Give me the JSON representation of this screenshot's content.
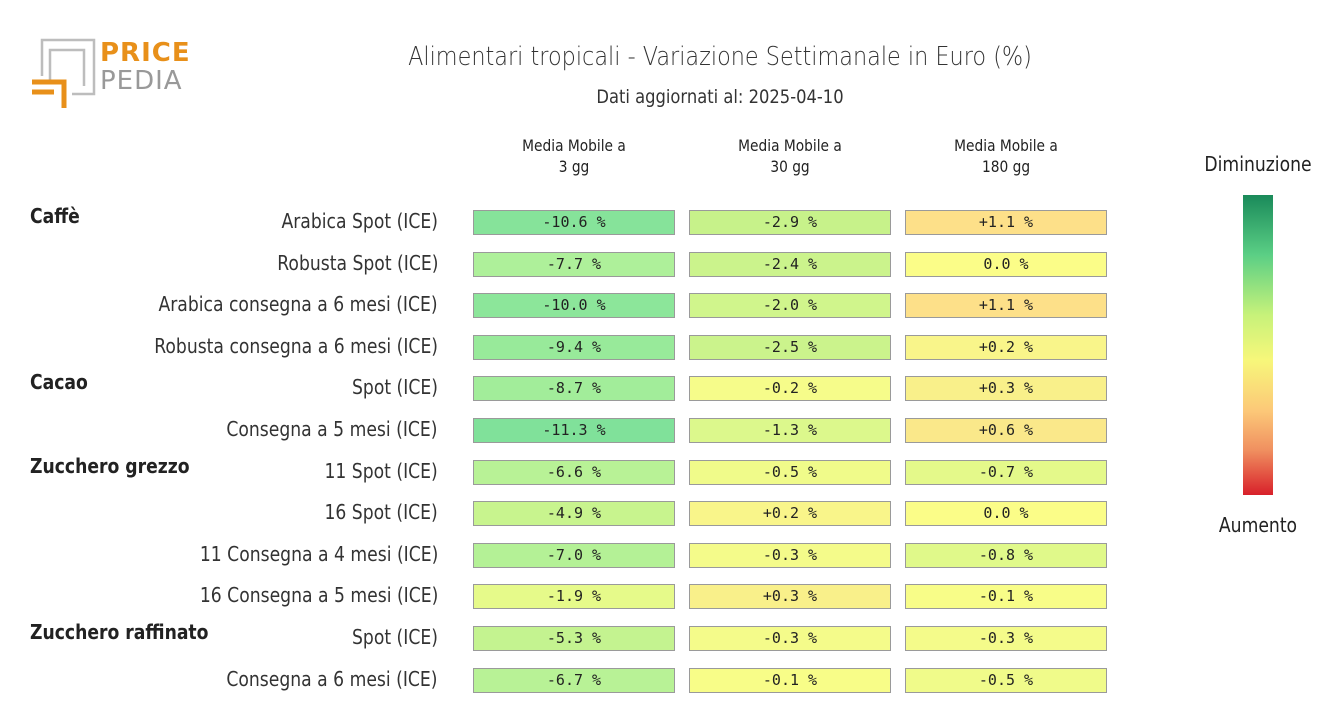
{
  "logo": {
    "line1": "PRICE",
    "line2": "PEDIA",
    "accent": "#e8901a",
    "gray": "#999999"
  },
  "chart_data": {
    "type": "table",
    "title": "Alimentari tropicali - Variazione Settimanale in Euro (%)",
    "subtitle": "Dati aggiornati al: 2025-04-10",
    "columns": [
      "Media Mobile a\n3 gg",
      "Media Mobile a\n30 gg",
      "Media Mobile a\n180 gg"
    ],
    "groups": [
      {
        "name": "Caffè",
        "rows": [
          {
            "label": "Arabica Spot (ICE)",
            "values": [
              "-10.6 %",
              "-2.9 %",
              "+1.1 %"
            ],
            "colors": [
              "#86e39a",
              "#c7f28a",
              "#fde089"
            ]
          },
          {
            "label": "Robusta Spot (ICE)",
            "values": [
              "-7.7 %",
              "-2.4 %",
              "0.0 %"
            ],
            "colors": [
              "#aef09a",
              "#cbf38c",
              "#fbfd88"
            ]
          },
          {
            "label": "Arabica consegna a 6 mesi (ICE)",
            "values": [
              "-10.0 %",
              "-2.0 %",
              "+1.1 %"
            ],
            "colors": [
              "#8ce69a",
              "#d0f58c",
              "#fde089"
            ]
          },
          {
            "label": "Robusta consegna a 6 mesi (ICE)",
            "values": [
              "-9.4 %",
              "-2.5 %",
              "+0.2 %"
            ],
            "colors": [
              "#98ea9a",
              "#cbf38c",
              "#f9f58a"
            ]
          }
        ]
      },
      {
        "name": "Cacao",
        "rows": [
          {
            "label": "Spot (ICE)",
            "values": [
              "-8.7 %",
              "-0.2 %",
              "+0.3 %"
            ],
            "colors": [
              "#a2ed9a",
              "#f6fc8a",
              "#f9f08a"
            ]
          },
          {
            "label": "Consegna a 5 mesi (ICE)",
            "values": [
              "-11.3 %",
              "-1.3 %",
              "+0.6 %"
            ],
            "colors": [
              "#80e19a",
              "#dcf88c",
              "#fae88a"
            ]
          }
        ]
      },
      {
        "name": "Zucchero grezzo",
        "rows": [
          {
            "label": "11 Spot (ICE)",
            "values": [
              "-6.6 %",
              "-0.5 %",
              "-0.7 %"
            ],
            "colors": [
              "#b8f296",
              "#f0fb8a",
              "#e4f98a"
            ]
          },
          {
            "label": "16 Spot (ICE)",
            "values": [
              "-4.9 %",
              "+0.2 %",
              "0.0 %"
            ],
            "colors": [
              "#c8f48e",
              "#f9f58a",
              "#fbfd88"
            ]
          },
          {
            "label": "11 Consegna a 4 mesi (ICE)",
            "values": [
              "-7.0 %",
              "-0.3 %",
              "-0.8 %"
            ],
            "colors": [
              "#b4f196",
              "#f4fb8a",
              "#e0f98a"
            ]
          },
          {
            "label": "16 Consegna a 5 mesi (ICE)",
            "values": [
              "-1.9 %",
              "+0.3 %",
              "-0.1 %"
            ],
            "colors": [
              "#e6fa8a",
              "#f9f08a",
              "#f8fd88"
            ]
          }
        ]
      },
      {
        "name": "Zucchero raffinato",
        "rows": [
          {
            "label": "Spot (ICE)",
            "values": [
              "-5.3 %",
              "-0.3 %",
              "-0.3 %"
            ],
            "colors": [
              "#c4f390",
              "#f4fb8a",
              "#f4fb8a"
            ]
          },
          {
            "label": "Consegna a 6 mesi (ICE)",
            "values": [
              "-6.7 %",
              "-0.1 %",
              "-0.5 %"
            ],
            "colors": [
              "#b8f296",
              "#f8fd88",
              "#f0fb8a"
            ]
          }
        ]
      }
    ],
    "legend": {
      "top": "Diminuzione",
      "bottom": "Aumento"
    }
  }
}
